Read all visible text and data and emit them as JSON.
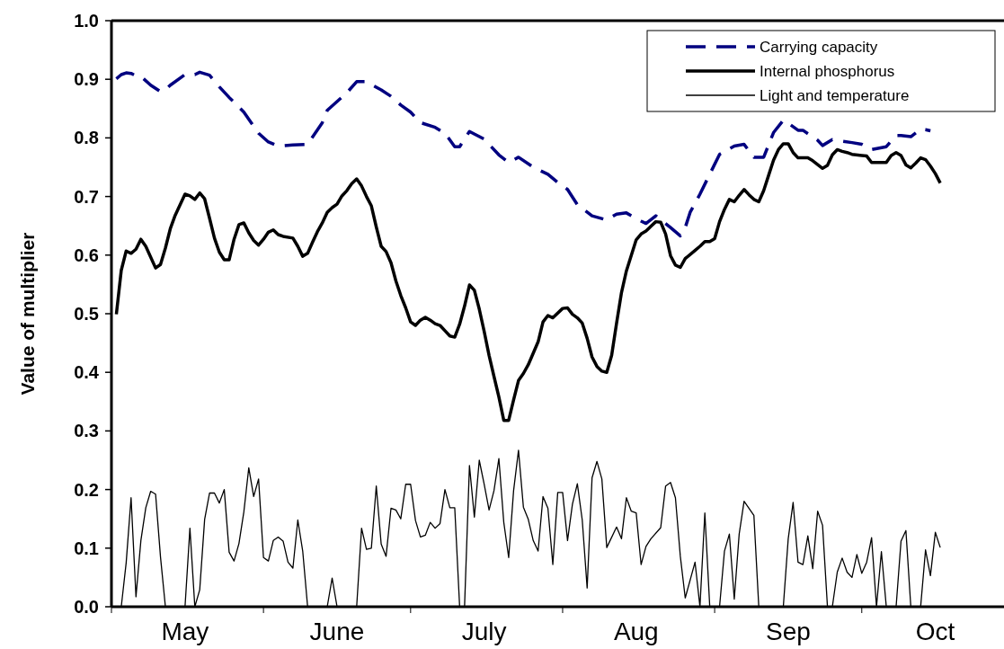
{
  "chart_data": {
    "type": "line",
    "ylabel": "Value of multiplier",
    "xlim": [
      "--05-01",
      "--10-30"
    ],
    "ylim": [
      0,
      1
    ],
    "xticks": [
      {
        "value": "--05-01",
        "label": null
      },
      {
        "value": "--05-16",
        "label": "May"
      },
      {
        "value": "--06-01",
        "label": null
      },
      {
        "value": "--06-16",
        "label": "June"
      },
      {
        "value": "--07-01",
        "label": null
      },
      {
        "value": "--07-16",
        "label": "July"
      },
      {
        "value": "--08-01",
        "label": null
      },
      {
        "value": "--08-16",
        "label": "Aug"
      },
      {
        "value": "--09-01",
        "label": null
      },
      {
        "value": "--09-16",
        "label": "Sep"
      },
      {
        "value": "--10-01",
        "label": null
      },
      {
        "value": "--10-16",
        "label": "Oct"
      }
    ],
    "yticks": [
      {
        "value": 0,
        "label": "0.0"
      },
      {
        "value": 0.1,
        "label": "0.1"
      },
      {
        "value": 0.2,
        "label": "0.2"
      },
      {
        "value": 0.3,
        "label": "0.3"
      },
      {
        "value": 0.4,
        "label": "0.4"
      },
      {
        "value": 0.5,
        "label": "0.5"
      },
      {
        "value": 0.6,
        "label": "0.6"
      },
      {
        "value": 0.7,
        "label": "0.7"
      },
      {
        "value": 0.8,
        "label": "0.8"
      },
      {
        "value": 0.9,
        "label": "0.9"
      },
      {
        "value": 1,
        "label": "1.0"
      }
    ],
    "grid": false,
    "legend": "top right",
    "marker": "none",
    "series": [
      {
        "name": "Carrying capacity",
        "color": "#000080",
        "line_style": "dashed",
        "x": [
          "--05-02",
          "--05-03",
          "--05-04",
          "--05-05",
          "--05-06",
          "--05-07",
          "--05-09",
          "--05-11",
          "--05-12",
          "--05-13",
          "--05-16",
          "--05-18",
          "--05-19",
          "--05-21",
          "--05-23",
          "--05-25",
          "--05-26",
          "--05-28",
          "--05-31",
          "--06-02",
          "--06-04",
          "--06-07",
          "--06-10",
          "--06-13",
          "--06-14",
          "--06-18",
          "--06-20",
          "--06-22",
          "--06-23",
          "--06-25",
          "--06-27",
          "--06-29",
          "--07-01",
          "--07-03",
          "--07-06",
          "--07-08",
          "--07-10",
          "--07-11",
          "--07-13",
          "--07-16",
          "--07-19",
          "--07-21",
          "--07-23",
          "--07-26",
          "--07-29",
          "--07-31",
          "--08-02",
          "--08-04",
          "--08-07",
          "--08-10",
          "--08-12",
          "--08-14",
          "--08-17",
          "--08-18",
          "--08-20",
          "--08-23",
          "--08-25",
          "--08-26",
          "--08-27",
          "--08-29",
          "--09-02",
          "--09-05",
          "--09-07",
          "--09-09",
          "--09-11",
          "--09-13",
          "--09-15",
          "--09-16",
          "--09-18",
          "--09-19",
          "--09-22",
          "--09-23",
          "--09-25",
          "--09-29",
          "--10-01",
          "--10-03",
          "--10-06",
          "--10-08",
          "--10-09",
          "--10-11",
          "--10-13",
          "--10-14",
          "--10-15"
        ],
        "values": [
          0.901,
          0.908,
          0.911,
          0.91,
          0.906,
          0.905,
          0.89,
          0.879,
          0.882,
          0.89,
          0.908,
          0.908,
          0.912,
          0.907,
          0.887,
          0.869,
          0.861,
          0.844,
          0.808,
          0.793,
          0.786,
          0.788,
          0.789,
          0.826,
          0.847,
          0.877,
          0.896,
          0.896,
          0.891,
          0.882,
          0.871,
          0.856,
          0.844,
          0.826,
          0.818,
          0.808,
          0.785,
          0.785,
          0.811,
          0.798,
          0.771,
          0.758,
          0.767,
          0.75,
          0.738,
          0.724,
          0.712,
          0.686,
          0.667,
          0.66,
          0.67,
          0.672,
          0.658,
          0.654,
          0.667,
          0.647,
          0.633,
          0.647,
          0.673,
          0.704,
          0.772,
          0.786,
          0.789,
          0.767,
          0.767,
          0.809,
          0.83,
          0.825,
          0.813,
          0.813,
          0.796,
          0.787,
          0.797,
          0.792,
          0.789,
          0.78,
          0.785,
          0.804,
          0.804,
          0.802,
          0.815,
          0.814,
          0.812
        ]
      },
      {
        "name": "Internal phosphorus",
        "color": "#000000",
        "line_style": "solid",
        "x": [
          "--05-02",
          "--05-03",
          "--05-04",
          "--05-05",
          "--05-06",
          "--05-07",
          "--05-08",
          "--05-10",
          "--05-11",
          "--05-12",
          "--05-13",
          "--05-14",
          "--05-15",
          "--05-16",
          "--05-17",
          "--05-18",
          "--05-19",
          "--05-20",
          "--05-21",
          "--05-22",
          "--05-23",
          "--05-24",
          "--05-25",
          "--05-26",
          "--05-27",
          "--05-28",
          "--05-29",
          "--05-30",
          "--05-31",
          "--06-01",
          "--06-02",
          "--06-03",
          "--06-04",
          "--06-05",
          "--06-07",
          "--06-08",
          "--06-09",
          "--06-10",
          "--06-11",
          "--06-12",
          "--06-13",
          "--06-14",
          "--06-15",
          "--06-16",
          "--06-17",
          "--06-18",
          "--06-19",
          "--06-20",
          "--06-21",
          "--06-22",
          "--06-23",
          "--06-24",
          "--06-25",
          "--06-26",
          "--06-27",
          "--06-28",
          "--06-29",
          "--06-30",
          "--07-01",
          "--07-02",
          "--07-03",
          "--07-04",
          "--07-05",
          "--07-06",
          "--07-07",
          "--07-08",
          "--07-09",
          "--07-10",
          "--07-11",
          "--07-12",
          "--07-13",
          "--07-14",
          "--07-15",
          "--07-16",
          "--07-17",
          "--07-18",
          "--07-19",
          "--07-20",
          "--07-21",
          "--07-22",
          "--07-23",
          "--07-24",
          "--07-25",
          "--07-27",
          "--07-28",
          "--07-29",
          "--07-30",
          "--08-01",
          "--08-02",
          "--08-03",
          "--08-04",
          "--08-05",
          "--08-06",
          "--08-07",
          "--08-08",
          "--08-09",
          "--08-10",
          "--08-11",
          "--08-12",
          "--08-13",
          "--08-14",
          "--08-16",
          "--08-17",
          "--08-18",
          "--08-19",
          "--08-20",
          "--08-21",
          "--08-22",
          "--08-23",
          "--08-24",
          "--08-25",
          "--08-26",
          "--08-28",
          "--08-29",
          "--08-30",
          "--08-31",
          "--09-01",
          "--09-02",
          "--09-03",
          "--09-04",
          "--09-05",
          "--09-06",
          "--09-07",
          "--09-08",
          "--09-09",
          "--09-10",
          "--09-11",
          "--09-12",
          "--09-13",
          "--09-14",
          "--09-15",
          "--09-16",
          "--09-17",
          "--09-18",
          "--09-20",
          "--09-21",
          "--09-23",
          "--09-24",
          "--09-25",
          "--09-26",
          "--09-27",
          "--09-28",
          "--09-29",
          "--10-01",
          "--10-02",
          "--10-03",
          "--10-06",
          "--10-07",
          "--10-08",
          "--10-09",
          "--10-10",
          "--10-11",
          "--10-12",
          "--10-13",
          "--10-14",
          "--10-15",
          "--10-16",
          "--10-17"
        ],
        "values": [
          0.499,
          0.574,
          0.607,
          0.603,
          0.61,
          0.627,
          0.615,
          0.578,
          0.584,
          0.612,
          0.645,
          0.668,
          0.686,
          0.704,
          0.701,
          0.695,
          0.706,
          0.696,
          0.663,
          0.629,
          0.605,
          0.592,
          0.592,
          0.627,
          0.652,
          0.655,
          0.638,
          0.625,
          0.617,
          0.627,
          0.639,
          0.643,
          0.635,
          0.632,
          0.629,
          0.615,
          0.598,
          0.603,
          0.622,
          0.64,
          0.655,
          0.673,
          0.681,
          0.687,
          0.701,
          0.71,
          0.722,
          0.73,
          0.718,
          0.7,
          0.684,
          0.648,
          0.615,
          0.606,
          0.587,
          0.556,
          0.531,
          0.51,
          0.486,
          0.48,
          0.489,
          0.494,
          0.489,
          0.483,
          0.48,
          0.471,
          0.462,
          0.46,
          0.482,
          0.513,
          0.549,
          0.54,
          0.508,
          0.47,
          0.429,
          0.393,
          0.358,
          0.318,
          0.318,
          0.353,
          0.386,
          0.398,
          0.413,
          0.452,
          0.486,
          0.497,
          0.493,
          0.509,
          0.51,
          0.499,
          0.493,
          0.484,
          0.458,
          0.426,
          0.41,
          0.402,
          0.4,
          0.429,
          0.484,
          0.536,
          0.573,
          0.626,
          0.636,
          0.641,
          0.649,
          0.657,
          0.656,
          0.636,
          0.599,
          0.583,
          0.579,
          0.594,
          0.608,
          0.615,
          0.623,
          0.623,
          0.628,
          0.657,
          0.678,
          0.695,
          0.691,
          0.702,
          0.712,
          0.703,
          0.695,
          0.691,
          0.71,
          0.736,
          0.762,
          0.78,
          0.79,
          0.79,
          0.775,
          0.766,
          0.766,
          0.761,
          0.748,
          0.753,
          0.771,
          0.78,
          0.777,
          0.775,
          0.772,
          0.77,
          0.769,
          0.758,
          0.758,
          0.77,
          0.775,
          0.77,
          0.754,
          0.749,
          0.757,
          0.766,
          0.763,
          0.752,
          0.739,
          0.723
        ]
      },
      {
        "name": "Light and temperature",
        "color": "#000000",
        "line_style": "solid",
        "x": [
          "--05-03",
          "--05-04",
          "--05-05",
          "--05-06",
          "--05-07",
          "--05-08",
          "--05-09",
          "--05-10",
          "--05-11",
          "--05-12",
          "--05-16",
          "--05-17",
          "--05-18",
          "--05-19",
          "--05-20",
          "--05-21",
          "--05-22",
          "--05-23",
          "--05-24",
          "--05-25",
          "--05-26",
          "--05-27",
          "--05-28",
          "--05-29",
          "--05-30",
          "--05-31",
          "--06-01",
          "--06-02",
          "--06-03",
          "--06-04",
          "--06-05",
          "--06-06",
          "--06-07",
          "--06-08",
          "--06-09",
          "--06-10",
          "--06-14",
          "--06-15",
          "--06-16",
          "--06-20",
          "--06-21",
          "--06-22",
          "--06-23",
          "--06-24",
          "--06-25",
          "--06-26",
          "--06-27",
          "--06-28",
          "--06-29",
          "--06-30",
          "--07-01",
          "--07-02",
          "--07-03",
          "--07-04",
          "--07-05",
          "--07-06",
          "--07-07",
          "--07-08",
          "--07-09",
          "--07-10",
          "--07-11",
          "--07-12",
          "--07-13",
          "--07-14",
          "--07-15",
          "--07-16",
          "--07-17",
          "--07-18",
          "--07-19",
          "--07-20",
          "--07-21",
          "--07-22",
          "--07-23",
          "--07-24",
          "--07-25",
          "--07-26",
          "--07-27",
          "--07-28",
          "--07-29",
          "--07-30",
          "--07-31",
          "--08-01",
          "--08-02",
          "--08-03",
          "--08-04",
          "--08-05",
          "--08-06",
          "--08-07",
          "--08-08",
          "--08-09",
          "--08-10",
          "--08-12",
          "--08-13",
          "--08-14",
          "--08-15",
          "--08-16",
          "--08-17",
          "--08-18",
          "--08-19",
          "--08-21",
          "--08-22",
          "--08-23",
          "--08-24",
          "--08-25",
          "--08-26",
          "--08-28",
          "--08-29",
          "--08-30",
          "--08-31",
          "--09-02",
          "--09-03",
          "--09-04",
          "--09-05",
          "--09-06",
          "--09-07",
          "--09-09",
          "--09-10",
          "--09-15",
          "--09-16",
          "--09-17",
          "--09-18",
          "--09-19",
          "--09-20",
          "--09-21",
          "--09-22",
          "--09-23",
          "--09-24",
          "--09-25",
          "--09-26",
          "--09-27",
          "--09-28",
          "--09-29",
          "--09-30",
          "--10-01",
          "--10-02",
          "--10-03",
          "--10-04",
          "--10-05",
          "--10-06",
          "--10-08",
          "--10-09",
          "--10-10",
          "--10-11",
          "--10-13",
          "--10-14",
          "--10-15",
          "--10-16",
          "--10-17"
        ],
        "values": [
          0,
          0.075,
          0.186,
          0.017,
          0.113,
          0.169,
          0.197,
          0.192,
          0.085,
          0,
          0,
          0.134,
          0,
          0.029,
          0.149,
          0.194,
          0.194,
          0.177,
          0.2,
          0.093,
          0.078,
          0.108,
          0.162,
          0.237,
          0.188,
          0.218,
          0.084,
          0.078,
          0.113,
          0.119,
          0.112,
          0.076,
          0.066,
          0.148,
          0.095,
          0,
          0,
          0.049,
          0,
          0,
          0.134,
          0.098,
          0.1,
          0.206,
          0.107,
          0.086,
          0.168,
          0.165,
          0.15,
          0.209,
          0.209,
          0.147,
          0.119,
          0.122,
          0.144,
          0.134,
          0.142,
          0.2,
          0.169,
          0.169,
          0,
          0,
          0.241,
          0.153,
          0.25,
          0.209,
          0.165,
          0.198,
          0.253,
          0.144,
          0.084,
          0.198,
          0.267,
          0.17,
          0.149,
          0.113,
          0.095,
          0.188,
          0.168,
          0.072,
          0.195,
          0.195,
          0.113,
          0.175,
          0.21,
          0.148,
          0.032,
          0.22,
          0.248,
          0.218,
          0.101,
          0.136,
          0.116,
          0.186,
          0.163,
          0.16,
          0.072,
          0.103,
          0.116,
          0.135,
          0.206,
          0.212,
          0.186,
          0.086,
          0.015,
          0.076,
          0,
          0.16,
          0,
          0,
          0.095,
          0.124,
          0.013,
          0.124,
          0.18,
          0.156,
          0,
          0,
          0.116,
          0.178,
          0.076,
          0.072,
          0.121,
          0.065,
          0.163,
          0.139,
          0,
          0,
          0.059,
          0.083,
          0.059,
          0.05,
          0.089,
          0.057,
          0.076,
          0.118,
          0,
          0.094,
          0,
          0,
          0.112,
          0.13,
          0,
          0,
          0.097,
          0.053,
          0.127,
          0.101
        ]
      }
    ]
  }
}
